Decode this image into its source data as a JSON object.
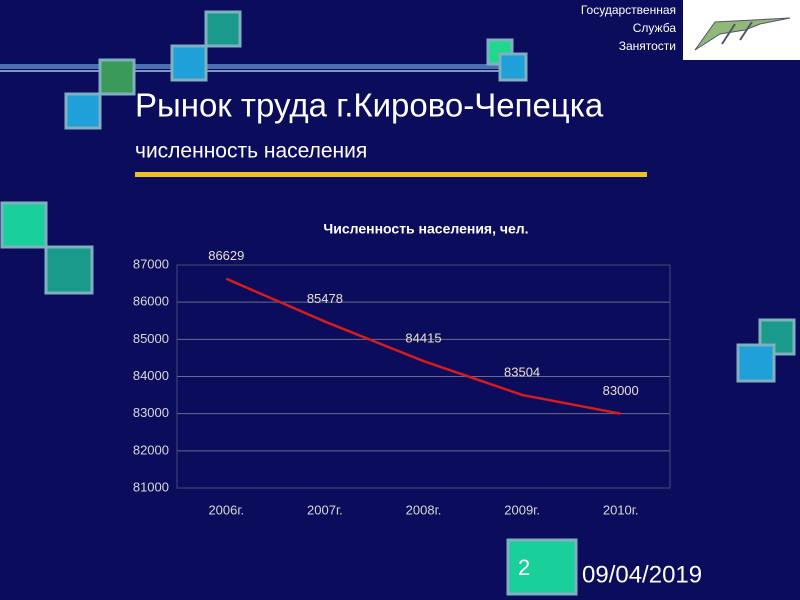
{
  "header": {
    "org": [
      "Государственная",
      "Служба",
      "Занятости"
    ]
  },
  "slide": {
    "title": "Рынок труда г.Кирово-Чепецка",
    "subtitle": "численность населения",
    "number": "2",
    "date": "09/04/2019"
  },
  "chart_data": {
    "type": "line",
    "title": "Численность населения, чел.",
    "categories": [
      "2006г.",
      "2007г.",
      "2008г.",
      "2009г.",
      "2010г."
    ],
    "series": [
      {
        "name": "Численность населения",
        "color": "#d81b1b",
        "values": [
          86629,
          85478,
          84415,
          83504,
          83000
        ]
      }
    ],
    "ylim": [
      81000,
      87000
    ],
    "yticks": [
      81000,
      82000,
      83000,
      84000,
      85000,
      86000,
      87000
    ],
    "grid": true
  }
}
